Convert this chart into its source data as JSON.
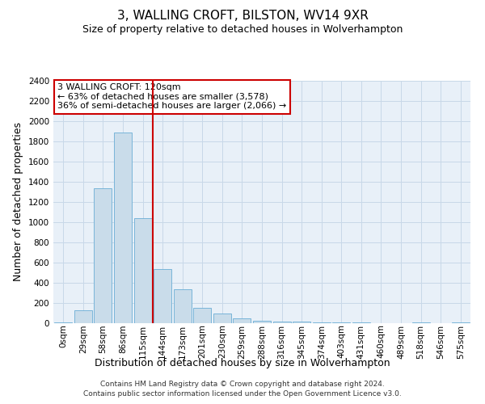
{
  "title": "3, WALLING CROFT, BILSTON, WV14 9XR",
  "subtitle": "Size of property relative to detached houses in Wolverhampton",
  "xlabel": "Distribution of detached houses by size in Wolverhampton",
  "ylabel": "Number of detached properties",
  "footer_line1": "Contains HM Land Registry data © Crown copyright and database right 2024.",
  "footer_line2": "Contains public sector information licensed under the Open Government Licence v3.0.",
  "annotation_line1": "3 WALLING CROFT: 120sqm",
  "annotation_line2": "← 63% of detached houses are smaller (3,578)",
  "annotation_line3": "36% of semi-detached houses are larger (2,066) →",
  "bar_color": "#c9dcea",
  "bar_edge_color": "#6aadd5",
  "vline_color": "#cc0000",
  "vline_x_pos": 4.5,
  "categories": [
    "0sqm",
    "29sqm",
    "58sqm",
    "86sqm",
    "115sqm",
    "144sqm",
    "173sqm",
    "201sqm",
    "230sqm",
    "259sqm",
    "288sqm",
    "316sqm",
    "345sqm",
    "374sqm",
    "403sqm",
    "431sqm",
    "460sqm",
    "489sqm",
    "518sqm",
    "546sqm",
    "575sqm"
  ],
  "values": [
    10,
    130,
    1340,
    1890,
    1040,
    540,
    340,
    155,
    100,
    50,
    25,
    20,
    20,
    10,
    5,
    5,
    0,
    0,
    5,
    0,
    5
  ],
  "ylim": [
    0,
    2400
  ],
  "yticks": [
    0,
    200,
    400,
    600,
    800,
    1000,
    1200,
    1400,
    1600,
    1800,
    2000,
    2200,
    2400
  ],
  "grid_color": "#c8d8e8",
  "background_color": "#e8f0f8",
  "title_fontsize": 11,
  "subtitle_fontsize": 9,
  "axis_label_fontsize": 9,
  "tick_fontsize": 7.5,
  "footer_fontsize": 6.5
}
